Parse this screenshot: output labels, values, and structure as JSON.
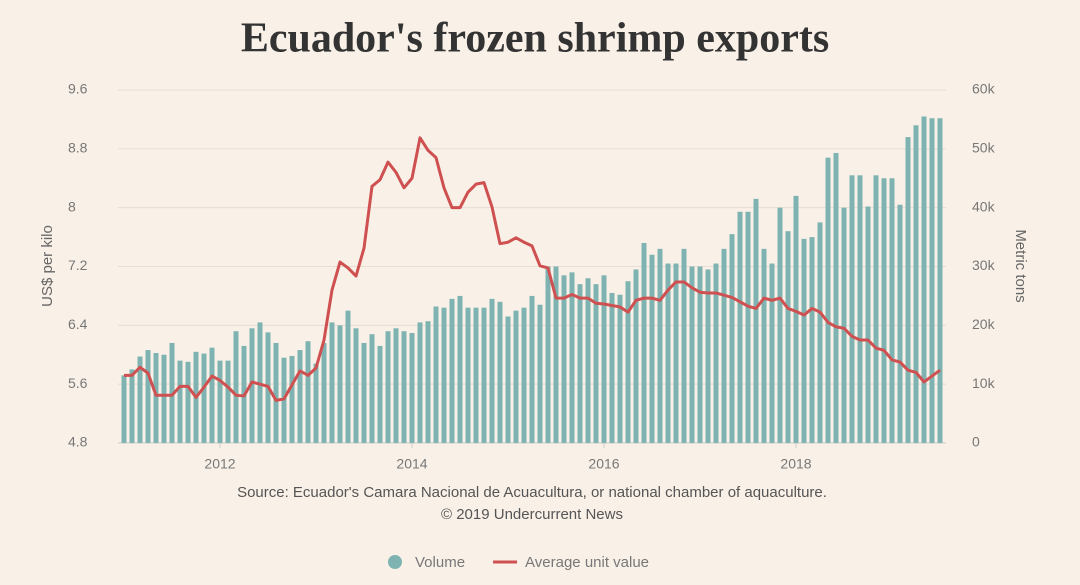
{
  "chart_data": {
    "type": "combo",
    "title": "Ecuador's frozen shrimp exports",
    "source": "Source: Ecuador's Camara Nacional de Acuacultura, or national chamber of aquaculture.",
    "copyright": "© 2019 Undercurrent News",
    "y_label": "US$ per kilo",
    "y2_label": "Metric tons",
    "grid": true,
    "legend": "bottom",
    "categories": [
      null,
      null,
      null,
      null,
      null,
      null,
      null,
      null,
      null,
      null,
      null,
      null,
      "2012",
      null,
      null,
      null,
      null,
      null,
      null,
      null,
      null,
      null,
      null,
      null,
      null,
      null,
      null,
      null,
      null,
      null,
      null,
      null,
      null,
      null,
      null,
      null,
      "2014",
      null,
      null,
      null,
      null,
      null,
      null,
      null,
      null,
      null,
      null,
      null,
      null,
      null,
      null,
      null,
      null,
      null,
      null,
      null,
      null,
      null,
      null,
      null,
      "2016",
      null,
      null,
      null,
      null,
      null,
      null,
      null,
      null,
      null,
      null,
      null,
      null,
      null,
      null,
      null,
      null,
      null,
      null,
      null,
      null,
      null,
      null,
      null,
      "2018",
      null,
      null,
      null,
      null,
      null,
      null,
      null,
      null,
      null,
      null,
      null,
      null,
      null,
      null,
      null,
      null,
      null,
      null
    ],
    "ylim": [
      4.8,
      9.6
    ],
    "yticks": [
      4.8,
      5.6,
      6.4,
      7.2,
      8,
      8.8,
      9.6
    ],
    "y2lim": [
      0,
      60000
    ],
    "y2ticks": [
      0,
      {
        "value": 10000,
        "label": "10k"
      },
      {
        "value": 20000,
        "label": "20k"
      },
      {
        "value": 30000,
        "label": "30k"
      },
      {
        "value": 40000,
        "label": "40k"
      },
      {
        "value": 50000,
        "label": "50k"
      },
      {
        "value": 60000,
        "label": "60k"
      }
    ],
    "series": [
      {
        "name": "Volume",
        "type": "bar",
        "axis": "y2",
        "color": "#7fb3b1",
        "values": [
          11500,
          12500,
          14700,
          15800,
          15300,
          15000,
          17000,
          14000,
          13800,
          15500,
          15200,
          16200,
          14000,
          14000,
          19000,
          16500,
          19500,
          20500,
          18800,
          17000,
          14500,
          14800,
          15800,
          17300,
          13500,
          17000,
          20500,
          20000,
          22500,
          19500,
          17000,
          18500,
          16500,
          19000,
          19500,
          19000,
          18700,
          20500,
          20700,
          23200,
          23000,
          24500,
          25000,
          23000,
          23000,
          23000,
          24500,
          24000,
          21500,
          22500,
          23000,
          25000,
          23500,
          30000,
          30000,
          28500,
          29000,
          27000,
          28000,
          27000,
          28500,
          25500,
          25200,
          27500,
          29500,
          34000,
          32000,
          33000,
          30500,
          30500,
          33000,
          30000,
          30000,
          29500,
          30500,
          33000,
          35500,
          39300,
          39300,
          41500,
          33000,
          30500,
          40000,
          36000,
          42000,
          34700,
          35000,
          37500,
          48500,
          49300,
          40000,
          45500,
          45500,
          40200,
          45500,
          45000,
          45000,
          40500,
          52000,
          54000,
          55500,
          55200,
          55200
        ]
      },
      {
        "name": "Average unit value",
        "type": "line",
        "axis": "y",
        "color": "#cf5050",
        "values": [
          5.72,
          5.72,
          5.83,
          5.75,
          5.45,
          5.45,
          5.45,
          5.57,
          5.57,
          5.42,
          5.56,
          5.71,
          5.65,
          5.56,
          5.45,
          5.44,
          5.63,
          5.6,
          5.57,
          5.38,
          5.4,
          5.59,
          5.78,
          5.72,
          5.82,
          6.2,
          6.88,
          7.26,
          7.18,
          7.07,
          7.45,
          8.29,
          8.38,
          8.62,
          8.48,
          8.27,
          8.4,
          8.95,
          8.78,
          8.68,
          8.27,
          8,
          8,
          8.21,
          8.32,
          8.34,
          8.01,
          7.51,
          7.53,
          7.59,
          7.53,
          7.48,
          7.21,
          7.18,
          6.77,
          6.77,
          6.82,
          6.77,
          6.77,
          6.7,
          6.69,
          6.67,
          6.65,
          6.58,
          6.74,
          6.77,
          6.77,
          6.74,
          6.88,
          6.99,
          6.99,
          6.91,
          6.85,
          6.84,
          6.84,
          6.81,
          6.78,
          6.72,
          6.66,
          6.63,
          6.77,
          6.74,
          6.77,
          6.63,
          6.59,
          6.54,
          6.63,
          6.58,
          6.44,
          6.38,
          6.36,
          6.25,
          6.2,
          6.2,
          6.09,
          6.06,
          5.93,
          5.9,
          5.79,
          5.76,
          5.63,
          5.71,
          5.79
        ]
      }
    ]
  }
}
